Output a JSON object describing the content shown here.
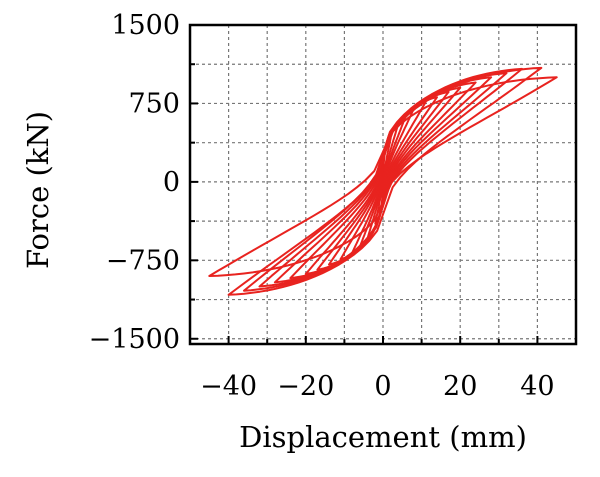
{
  "chart_data": {
    "type": "line",
    "title": "",
    "xlabel": "Displacement (mm)",
    "ylabel": "Force (kN)",
    "xlim": [
      -50,
      50
    ],
    "ylim": [
      -1550,
      1500
    ],
    "xticks": [
      -40,
      -20,
      0,
      20,
      40
    ],
    "xtick_labels": [
      "−40",
      "−20",
      "0",
      "20",
      "40"
    ],
    "yticks": [
      1500,
      750,
      0,
      -750,
      -1500
    ],
    "ytick_labels": [
      "1500",
      "750",
      "0",
      "−750",
      "−1500"
    ],
    "grid": true,
    "legend": "none",
    "color": "#e8231f",
    "series": [
      {
        "values_description_omitted": true,
        "loops": [
          {
            "d_max": 2,
            "f_max": 420,
            "d_min": -2,
            "f_min": -400
          },
          {
            "d_max": 4,
            "f_max": 560,
            "d_min": -4,
            "f_min": -540
          },
          {
            "d_max": 6,
            "f_max": 640,
            "d_min": -6,
            "f_min": -620
          },
          {
            "d_max": 8,
            "f_max": 700,
            "d_min": -8,
            "f_min": -680
          },
          {
            "d_max": 11,
            "f_max": 760,
            "d_min": -11,
            "f_min": -740
          },
          {
            "d_max": 14,
            "f_max": 810,
            "d_min": -14,
            "f_min": -790
          },
          {
            "d_max": 17,
            "f_max": 860,
            "d_min": -17,
            "f_min": -840
          },
          {
            "d_max": 20,
            "f_max": 900,
            "d_min": -20,
            "f_min": -880
          },
          {
            "d_max": 24,
            "f_max": 950,
            "d_min": -24,
            "f_min": -920
          },
          {
            "d_max": 28,
            "f_max": 1000,
            "d_min": -28,
            "f_min": -960
          },
          {
            "d_max": 32,
            "f_max": 1040,
            "d_min": -32,
            "f_min": -1000
          },
          {
            "d_max": 36,
            "f_max": 1080,
            "d_min": -36,
            "f_min": -1040
          },
          {
            "d_max": 41,
            "f_max": 1090,
            "d_min": -40,
            "f_min": -1080
          },
          {
            "d_max": 45,
            "f_max": 1000,
            "d_min": -45,
            "f_min": -900
          }
        ]
      }
    ]
  }
}
